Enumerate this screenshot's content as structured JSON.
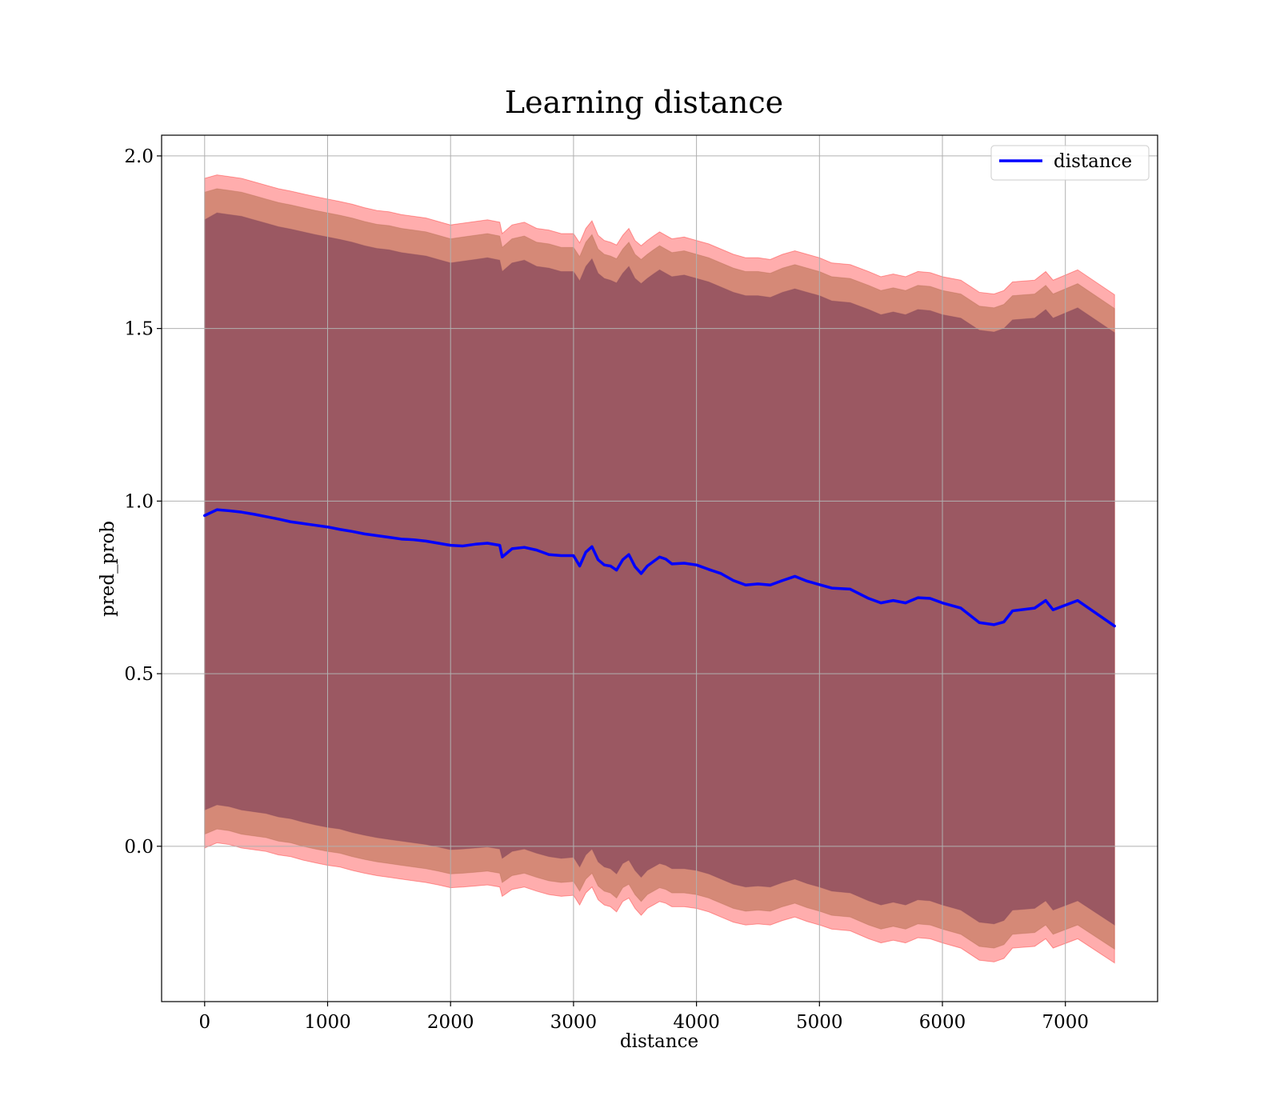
{
  "chart_data": {
    "type": "line",
    "title": "Learning distance",
    "xlabel": "distance",
    "ylabel": "pred_prob",
    "xlim": [
      -350,
      7750
    ],
    "ylim": [
      -0.45,
      2.06
    ],
    "xticks": [
      0,
      1000,
      2000,
      3000,
      4000,
      5000,
      6000,
      7000
    ],
    "yticks": [
      0.0,
      0.5,
      1.0,
      1.5,
      2.0
    ],
    "xtick_labels": [
      "0",
      "1000",
      "2000",
      "3000",
      "4000",
      "5000",
      "6000",
      "7000"
    ],
    "ytick_labels": [
      "0.0",
      "0.5",
      "1.0",
      "1.5",
      "2.0"
    ],
    "grid": true,
    "legend": {
      "position": "top-right",
      "entries": [
        "distance"
      ]
    },
    "x": [
      0,
      100,
      200,
      300,
      400,
      500,
      600,
      700,
      800,
      900,
      1000,
      1100,
      1200,
      1300,
      1400,
      1500,
      1600,
      1700,
      1800,
      1900,
      2000,
      2100,
      2200,
      2300,
      2400,
      2420,
      2500,
      2600,
      2700,
      2800,
      2900,
      3000,
      3050,
      3100,
      3150,
      3200,
      3250,
      3300,
      3350,
      3400,
      3450,
      3500,
      3550,
      3600,
      3650,
      3700,
      3750,
      3800,
      3900,
      4000,
      4100,
      4200,
      4300,
      4400,
      4500,
      4600,
      4700,
      4800,
      4900,
      5000,
      5100,
      5250,
      5400,
      5500,
      5600,
      5700,
      5800,
      5900,
      6000,
      6150,
      6300,
      6420,
      6500,
      6570,
      6750,
      6840,
      6900,
      7100,
      7400
    ],
    "series": [
      {
        "name": "distance",
        "color": "#0000ff",
        "values": [
          0.958,
          0.975,
          0.972,
          0.968,
          0.962,
          0.955,
          0.948,
          0.94,
          0.935,
          0.93,
          0.925,
          0.918,
          0.912,
          0.905,
          0.9,
          0.895,
          0.89,
          0.888,
          0.884,
          0.878,
          0.872,
          0.87,
          0.875,
          0.878,
          0.872,
          0.838,
          0.862,
          0.866,
          0.858,
          0.845,
          0.842,
          0.842,
          0.812,
          0.852,
          0.868,
          0.83,
          0.815,
          0.812,
          0.8,
          0.83,
          0.845,
          0.81,
          0.79,
          0.812,
          0.825,
          0.838,
          0.832,
          0.818,
          0.82,
          0.815,
          0.802,
          0.79,
          0.77,
          0.757,
          0.76,
          0.757,
          0.77,
          0.782,
          0.768,
          0.758,
          0.748,
          0.745,
          0.718,
          0.705,
          0.712,
          0.705,
          0.72,
          0.718,
          0.705,
          0.69,
          0.648,
          0.642,
          0.65,
          0.682,
          0.69,
          0.712,
          0.685,
          0.712,
          0.638
        ]
      }
    ],
    "bands": [
      {
        "label": "",
        "color": "#ff0000",
        "upper": [
          1.935,
          1.945,
          1.94,
          1.935,
          1.925,
          1.915,
          1.905,
          1.898,
          1.89,
          1.882,
          1.875,
          1.868,
          1.86,
          1.85,
          1.842,
          1.838,
          1.83,
          1.825,
          1.82,
          1.81,
          1.8,
          1.805,
          1.81,
          1.815,
          1.808,
          1.775,
          1.8,
          1.808,
          1.79,
          1.785,
          1.775,
          1.775,
          1.748,
          1.79,
          1.812,
          1.77,
          1.755,
          1.75,
          1.742,
          1.77,
          1.79,
          1.755,
          1.74,
          1.755,
          1.768,
          1.78,
          1.77,
          1.76,
          1.765,
          1.755,
          1.745,
          1.73,
          1.715,
          1.705,
          1.705,
          1.7,
          1.715,
          1.725,
          1.715,
          1.705,
          1.69,
          1.685,
          1.665,
          1.65,
          1.658,
          1.65,
          1.665,
          1.662,
          1.65,
          1.64,
          1.605,
          1.6,
          1.61,
          1.635,
          1.64,
          1.665,
          1.64,
          1.67,
          1.598
        ],
        "lower": [
          -0.005,
          0.01,
          0.005,
          -0.005,
          -0.01,
          -0.015,
          -0.025,
          -0.03,
          -0.04,
          -0.048,
          -0.055,
          -0.06,
          -0.07,
          -0.078,
          -0.085,
          -0.09,
          -0.095,
          -0.1,
          -0.105,
          -0.112,
          -0.12,
          -0.118,
          -0.115,
          -0.112,
          -0.118,
          -0.145,
          -0.125,
          -0.118,
          -0.13,
          -0.14,
          -0.145,
          -0.142,
          -0.17,
          -0.135,
          -0.118,
          -0.155,
          -0.17,
          -0.175,
          -0.19,
          -0.16,
          -0.15,
          -0.18,
          -0.2,
          -0.18,
          -0.17,
          -0.16,
          -0.165,
          -0.175,
          -0.175,
          -0.18,
          -0.19,
          -0.205,
          -0.22,
          -0.228,
          -0.225,
          -0.228,
          -0.215,
          -0.205,
          -0.218,
          -0.228,
          -0.24,
          -0.245,
          -0.268,
          -0.28,
          -0.272,
          -0.28,
          -0.265,
          -0.268,
          -0.28,
          -0.295,
          -0.33,
          -0.335,
          -0.325,
          -0.295,
          -0.29,
          -0.268,
          -0.295,
          -0.268,
          -0.338
        ]
      },
      {
        "label": "",
        "color": "#b36b4a",
        "upper": [
          1.895,
          1.905,
          1.9,
          1.895,
          1.885,
          1.875,
          1.865,
          1.858,
          1.85,
          1.842,
          1.835,
          1.828,
          1.82,
          1.81,
          1.802,
          1.798,
          1.79,
          1.785,
          1.78,
          1.77,
          1.76,
          1.765,
          1.77,
          1.775,
          1.768,
          1.735,
          1.76,
          1.768,
          1.75,
          1.745,
          1.735,
          1.735,
          1.708,
          1.75,
          1.772,
          1.73,
          1.715,
          1.71,
          1.702,
          1.73,
          1.75,
          1.715,
          1.7,
          1.715,
          1.728,
          1.74,
          1.73,
          1.72,
          1.725,
          1.715,
          1.705,
          1.69,
          1.675,
          1.665,
          1.665,
          1.66,
          1.675,
          1.685,
          1.675,
          1.665,
          1.65,
          1.645,
          1.625,
          1.61,
          1.618,
          1.61,
          1.625,
          1.622,
          1.61,
          1.6,
          1.565,
          1.56,
          1.57,
          1.595,
          1.6,
          1.625,
          1.6,
          1.63,
          1.558
        ],
        "lower": [
          0.035,
          0.05,
          0.045,
          0.035,
          0.03,
          0.025,
          0.015,
          0.01,
          0.0,
          -0.008,
          -0.015,
          -0.02,
          -0.03,
          -0.038,
          -0.045,
          -0.05,
          -0.055,
          -0.06,
          -0.065,
          -0.072,
          -0.08,
          -0.078,
          -0.075,
          -0.072,
          -0.078,
          -0.105,
          -0.085,
          -0.078,
          -0.09,
          -0.1,
          -0.105,
          -0.102,
          -0.13,
          -0.095,
          -0.078,
          -0.115,
          -0.13,
          -0.135,
          -0.15,
          -0.12,
          -0.11,
          -0.14,
          -0.16,
          -0.14,
          -0.13,
          -0.12,
          -0.125,
          -0.135,
          -0.135,
          -0.14,
          -0.15,
          -0.165,
          -0.18,
          -0.188,
          -0.185,
          -0.188,
          -0.175,
          -0.165,
          -0.178,
          -0.188,
          -0.2,
          -0.205,
          -0.228,
          -0.24,
          -0.232,
          -0.24,
          -0.225,
          -0.228,
          -0.24,
          -0.255,
          -0.29,
          -0.295,
          -0.285,
          -0.255,
          -0.25,
          -0.228,
          -0.255,
          -0.228,
          -0.298
        ]
      },
      {
        "label": "",
        "color": "#8a4a5c",
        "upper": [
          1.815,
          1.835,
          1.83,
          1.825,
          1.815,
          1.805,
          1.795,
          1.788,
          1.78,
          1.772,
          1.765,
          1.758,
          1.75,
          1.74,
          1.732,
          1.728,
          1.72,
          1.715,
          1.71,
          1.7,
          1.69,
          1.695,
          1.7,
          1.705,
          1.698,
          1.665,
          1.69,
          1.698,
          1.68,
          1.675,
          1.665,
          1.665,
          1.638,
          1.68,
          1.702,
          1.66,
          1.645,
          1.64,
          1.632,
          1.66,
          1.68,
          1.645,
          1.63,
          1.645,
          1.658,
          1.67,
          1.66,
          1.65,
          1.655,
          1.645,
          1.635,
          1.62,
          1.605,
          1.595,
          1.595,
          1.59,
          1.605,
          1.615,
          1.605,
          1.595,
          1.58,
          1.575,
          1.555,
          1.54,
          1.548,
          1.54,
          1.555,
          1.552,
          1.54,
          1.53,
          1.495,
          1.49,
          1.5,
          1.525,
          1.53,
          1.555,
          1.53,
          1.56,
          1.488
        ],
        "lower": [
          0.105,
          0.12,
          0.115,
          0.105,
          0.1,
          0.095,
          0.085,
          0.08,
          0.07,
          0.062,
          0.055,
          0.05,
          0.04,
          0.032,
          0.025,
          0.02,
          0.015,
          0.01,
          0.005,
          -0.002,
          -0.01,
          -0.008,
          -0.005,
          -0.002,
          -0.008,
          -0.035,
          -0.015,
          -0.008,
          -0.02,
          -0.03,
          -0.035,
          -0.032,
          -0.06,
          -0.025,
          -0.008,
          -0.045,
          -0.06,
          -0.065,
          -0.08,
          -0.05,
          -0.04,
          -0.07,
          -0.09,
          -0.07,
          -0.06,
          -0.05,
          -0.055,
          -0.065,
          -0.065,
          -0.07,
          -0.08,
          -0.095,
          -0.11,
          -0.118,
          -0.115,
          -0.118,
          -0.105,
          -0.095,
          -0.108,
          -0.118,
          -0.13,
          -0.135,
          -0.158,
          -0.17,
          -0.162,
          -0.17,
          -0.155,
          -0.158,
          -0.17,
          -0.185,
          -0.22,
          -0.225,
          -0.215,
          -0.185,
          -0.18,
          -0.158,
          -0.185,
          -0.158,
          -0.228
        ]
      }
    ]
  }
}
